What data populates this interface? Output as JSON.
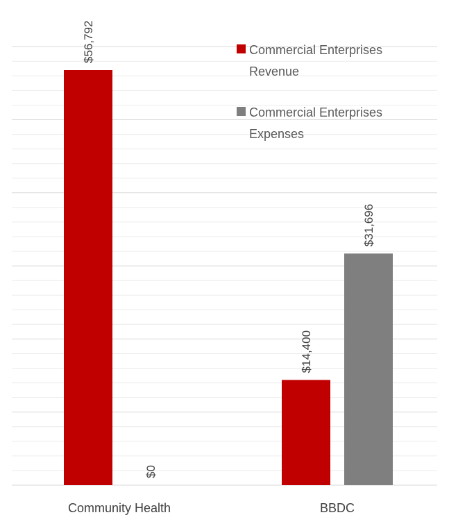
{
  "chart_data": {
    "type": "bar",
    "title": "",
    "xlabel": "",
    "ylabel": "",
    "categories": [
      "Community Health",
      "BBDC"
    ],
    "series": [
      {
        "name": "Commercial Enterprises Revenue",
        "color": "#c00000",
        "values": [
          56792,
          14400
        ],
        "labels": [
          "$56,792",
          "$14,400"
        ]
      },
      {
        "name": "Commercial Enterprises Expenses",
        "color": "#7f7f7f",
        "values": [
          0,
          31696
        ],
        "labels": [
          "$0",
          "$31,696"
        ]
      }
    ],
    "ylim": [
      0,
      60000
    ],
    "grid": true,
    "legend_position": "top-right",
    "legend_lines": [
      [
        "Commercial Enterprises",
        "Revenue"
      ],
      [
        "Commercial Enterprises",
        "Expenses"
      ]
    ]
  }
}
